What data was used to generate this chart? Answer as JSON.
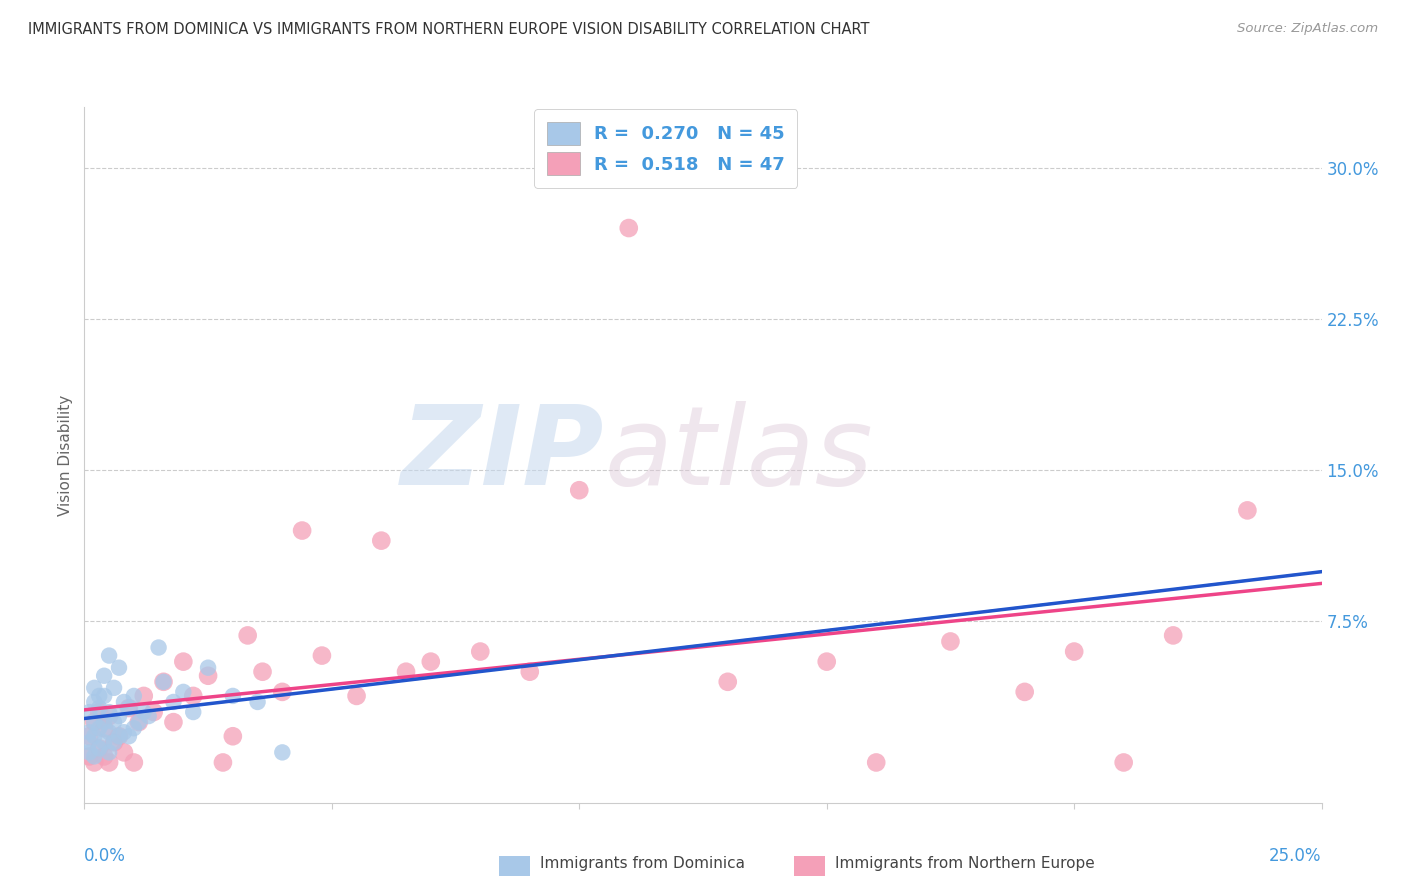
{
  "title": "IMMIGRANTS FROM DOMINICA VS IMMIGRANTS FROM NORTHERN EUROPE VISION DISABILITY CORRELATION CHART",
  "source": "Source: ZipAtlas.com",
  "ylabel": "Vision Disability",
  "ytick_labels": [
    "7.5%",
    "15.0%",
    "22.5%",
    "30.0%"
  ],
  "ytick_values": [
    0.075,
    0.15,
    0.225,
    0.3
  ],
  "xlim": [
    0.0,
    0.25
  ],
  "ylim": [
    -0.015,
    0.33
  ],
  "series1_label": "Immigrants from Dominica",
  "series2_label": "Immigrants from Northern Europe",
  "series1_R": "0.270",
  "series1_N": "45",
  "series2_R": "0.518",
  "series2_N": "47",
  "series1_color": "#a8c8e8",
  "series2_color": "#f4a0b8",
  "line1_solid_color": "#2255cc",
  "line2_solid_color": "#ee4488",
  "line1_dash_color": "#6699dd",
  "background_color": "#ffffff",
  "grid_color": "#cccccc",
  "title_color": "#333333",
  "axis_label_color": "#4499dd",
  "series1_x": [
    0.001,
    0.001,
    0.001,
    0.001,
    0.002,
    0.002,
    0.002,
    0.002,
    0.002,
    0.003,
    0.003,
    0.003,
    0.003,
    0.004,
    0.004,
    0.004,
    0.004,
    0.005,
    0.005,
    0.005,
    0.005,
    0.006,
    0.006,
    0.006,
    0.007,
    0.007,
    0.007,
    0.008,
    0.008,
    0.009,
    0.009,
    0.01,
    0.01,
    0.011,
    0.012,
    0.013,
    0.015,
    0.016,
    0.018,
    0.02,
    0.022,
    0.025,
    0.03,
    0.035,
    0.04
  ],
  "series1_y": [
    0.01,
    0.015,
    0.02,
    0.03,
    0.008,
    0.018,
    0.025,
    0.035,
    0.042,
    0.012,
    0.022,
    0.032,
    0.038,
    0.015,
    0.025,
    0.038,
    0.048,
    0.01,
    0.02,
    0.03,
    0.058,
    0.015,
    0.025,
    0.042,
    0.018,
    0.028,
    0.052,
    0.02,
    0.035,
    0.018,
    0.032,
    0.022,
    0.038,
    0.025,
    0.03,
    0.028,
    0.062,
    0.045,
    0.035,
    0.04,
    0.03,
    0.052,
    0.038,
    0.035,
    0.01
  ],
  "series2_x": [
    0.001,
    0.001,
    0.002,
    0.002,
    0.003,
    0.003,
    0.004,
    0.004,
    0.005,
    0.005,
    0.006,
    0.007,
    0.008,
    0.009,
    0.01,
    0.011,
    0.012,
    0.014,
    0.016,
    0.018,
    0.02,
    0.022,
    0.025,
    0.028,
    0.03,
    0.033,
    0.036,
    0.04,
    0.044,
    0.048,
    0.055,
    0.06,
    0.065,
    0.07,
    0.08,
    0.09,
    0.1,
    0.11,
    0.13,
    0.15,
    0.16,
    0.175,
    0.19,
    0.2,
    0.21,
    0.22,
    0.235
  ],
  "series2_y": [
    0.008,
    0.018,
    0.005,
    0.025,
    0.012,
    0.03,
    0.008,
    0.022,
    0.005,
    0.028,
    0.015,
    0.018,
    0.01,
    0.032,
    0.005,
    0.025,
    0.038,
    0.03,
    0.045,
    0.025,
    0.055,
    0.038,
    0.048,
    0.005,
    0.018,
    0.068,
    0.05,
    0.04,
    0.12,
    0.058,
    0.038,
    0.115,
    0.05,
    0.055,
    0.06,
    0.05,
    0.14,
    0.27,
    0.045,
    0.055,
    0.005,
    0.065,
    0.04,
    0.06,
    0.005,
    0.068,
    0.13
  ]
}
